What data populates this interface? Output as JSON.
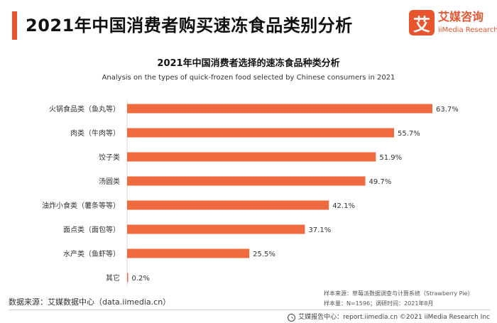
{
  "header": {
    "title": "2021年中国消费者购买速冻食品类别分析"
  },
  "logo": {
    "mark": "艾",
    "name_cn": "艾媒咨询",
    "name_en": "iiMedia Research"
  },
  "chart_data": {
    "type": "bar",
    "orientation": "horizontal",
    "title": "2021年中国消费者选择的速冻食品种类分析",
    "subtitle": "Analysis on the types of quick-frozen food selected by Chinese consumers in 2021",
    "categories": [
      "火锅食品类（鱼丸等）",
      "肉类（牛肉等）",
      "饺子类",
      "汤圆类",
      "油炸小食类（薯条等等）",
      "面点类（面包等）",
      "水产类（鱼虾等）",
      "其它"
    ],
    "values": [
      63.7,
      55.7,
      51.9,
      49.7,
      42.1,
      37.1,
      25.5,
      0.2
    ],
    "value_labels": [
      "63.7%",
      "55.7%",
      "51.9%",
      "49.7%",
      "42.1%",
      "37.1%",
      "25.5%",
      "0.2%"
    ],
    "unit": "%",
    "xlim": [
      0,
      63.7
    ],
    "bar_color": "#f06a3f",
    "grid": false,
    "legend": "none"
  },
  "footer": {
    "source": "数据来源：艾媒数据中心（data.iimedia.cn）",
    "sample_source": "样本来源：草莓派数据调查与计算系统（Strawberry Pie）",
    "sample_info": "样本量：N=1596；调研时间：2021年8月",
    "report_center": "艾媒报告中心：report.iimedia.cn  ©2021  iiMedia Research  Inc"
  },
  "colors": {
    "accent": "#e8542e",
    "bar": "#f06a3f"
  },
  "icons": {
    "footer_icon": "search-icon"
  }
}
